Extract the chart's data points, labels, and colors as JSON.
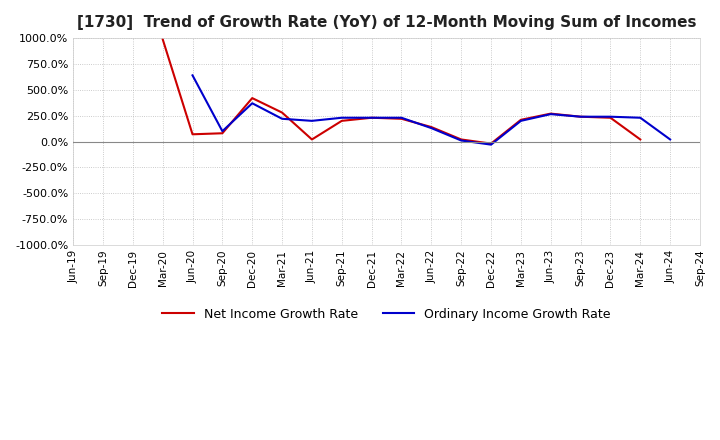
{
  "title": "[1730]  Trend of Growth Rate (YoY) of 12-Month Moving Sum of Incomes",
  "title_fontsize": 11,
  "ylim": [
    -1000,
    1000
  ],
  "yticks": [
    1000,
    750,
    500,
    250,
    0,
    -250,
    -500,
    -750,
    -1000
  ],
  "background_color": "#ffffff",
  "plot_bg_color": "#ffffff",
  "grid_color": "#bbbbbb",
  "legend_labels": [
    "Ordinary Income Growth Rate",
    "Net Income Growth Rate"
  ],
  "legend_colors": [
    "#0000cc",
    "#cc0000"
  ],
  "x_labels": [
    "Jun-19",
    "Sep-19",
    "Dec-19",
    "Mar-20",
    "Jun-20",
    "Sep-20",
    "Dec-20",
    "Mar-21",
    "Jun-21",
    "Sep-21",
    "Dec-21",
    "Mar-22",
    "Jun-22",
    "Sep-22",
    "Dec-22",
    "Mar-23",
    "Jun-23",
    "Sep-23",
    "Dec-23",
    "Mar-24",
    "Jun-24",
    "Sep-24"
  ],
  "ordinary_income": [
    null,
    null,
    null,
    null,
    640,
    100,
    370,
    220,
    200,
    230,
    230,
    230,
    130,
    10,
    -30,
    200,
    265,
    240,
    240,
    230,
    20,
    null
  ],
  "net_income": [
    null,
    null,
    null,
    990,
    70,
    80,
    420,
    280,
    20,
    200,
    230,
    220,
    140,
    20,
    -20,
    210,
    270,
    240,
    230,
    20,
    null,
    null
  ]
}
